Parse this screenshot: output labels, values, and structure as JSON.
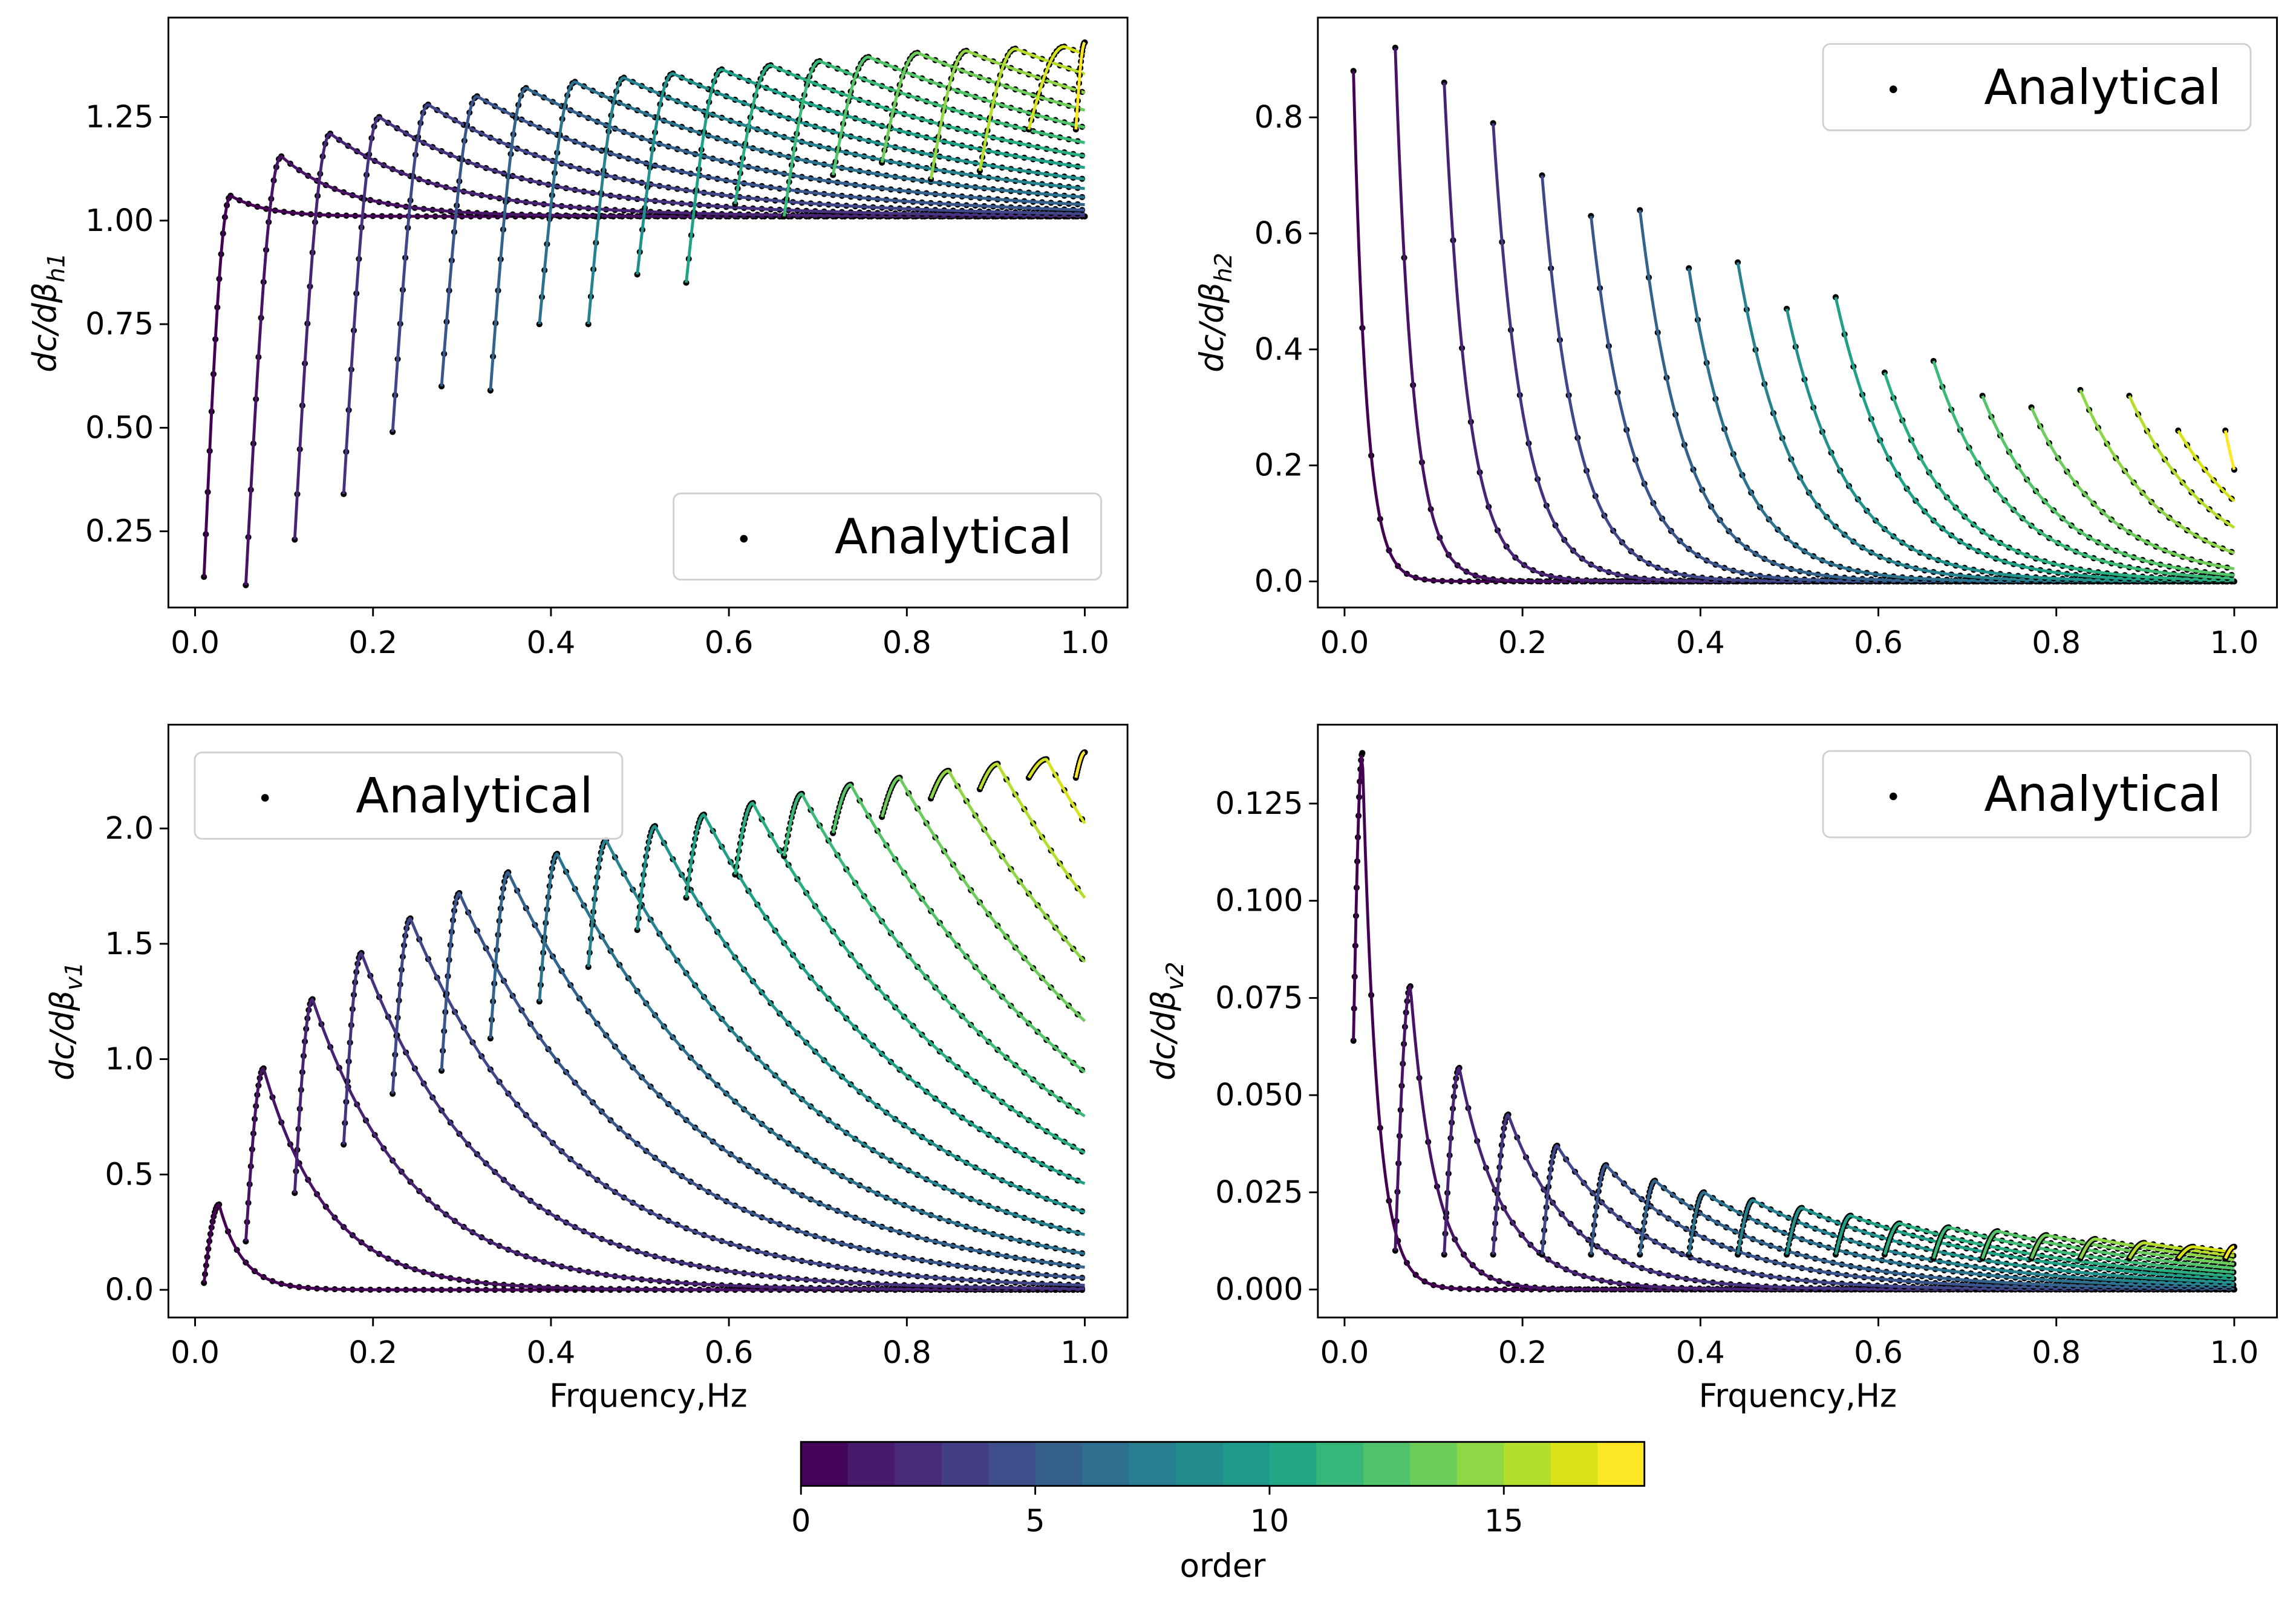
{
  "chart_data": {
    "type": "line",
    "x_values_note": "Frequency in Hz",
    "xlabel": "Frquency,Hz",
    "xlim": [
      -0.03,
      1.048
    ],
    "xticks": [
      0,
      0.2,
      0.4,
      0.6,
      0.8,
      1.0
    ],
    "xtick_labels": [
      "0.0",
      "0.2",
      "0.4",
      "0.6",
      "0.8",
      "1.0"
    ],
    "legend_label": "Analytical",
    "series_colors": [
      "#440154",
      "#471365",
      "#482374",
      "#46327e",
      "#404688",
      "#3a548c",
      "#33638d",
      "#2c728e",
      "#26828e",
      "#21918c",
      "#1fa187",
      "#28ae80",
      "#3aba76",
      "#52c569",
      "#6ccd5a",
      "#8ed645",
      "#b5de2b",
      "#d8e219",
      "#fde725"
    ],
    "orders": [
      0,
      1,
      2,
      3,
      4,
      5,
      6,
      7,
      8,
      9,
      10,
      11,
      12,
      13,
      14,
      15,
      16,
      17,
      18
    ],
    "start_freq": [
      0.01,
      0.057,
      0.112,
      0.167,
      0.222,
      0.277,
      0.332,
      0.387,
      0.442,
      0.497,
      0.552,
      0.607,
      0.662,
      0.717,
      0.772,
      0.827,
      0.882,
      0.937,
      0.99
    ],
    "panels": [
      {
        "id": "h1",
        "ylabel_main": "dc/dβ",
        "ylabel_sub": "h1",
        "ylim": [
          0.066,
          1.49
        ],
        "yticks": [
          0.25,
          0.5,
          0.75,
          1.0,
          1.25
        ],
        "ytick_labels": [
          "0.25",
          "0.50",
          "0.75",
          "1.00",
          "1.25"
        ],
        "legend_position": "lower-right",
        "show_xlabel": false,
        "asymptote": 1.01,
        "start_value": [
          0.14,
          0.12,
          0.23,
          0.34,
          0.49,
          0.6,
          0.59,
          0.75,
          0.75,
          0.87,
          0.85,
          1.04,
          1.01,
          1.11,
          1.14,
          1.1,
          1.12,
          1.22,
          1.22
        ],
        "peak_freq": [
          0.04,
          0.097,
          0.152,
          0.207,
          0.262,
          0.317,
          0.372,
          0.427,
          0.482,
          0.537,
          0.592,
          0.647,
          0.702,
          0.757,
          0.812,
          0.867,
          0.922,
          0.977,
          1.0
        ],
        "peak_value": [
          1.06,
          1.155,
          1.21,
          1.25,
          1.28,
          1.3,
          1.32,
          1.335,
          1.345,
          1.355,
          1.365,
          1.375,
          1.385,
          1.395,
          1.405,
          1.41,
          1.415,
          1.42,
          1.43
        ],
        "decay_rate": [
          25,
          13,
          8,
          6,
          5,
          4.3,
          3.8,
          3.4,
          3.1,
          2.9,
          2.7,
          2.6,
          2.5,
          2.4,
          2.3,
          2.2,
          2.1,
          2.0,
          2.0
        ]
      },
      {
        "id": "h2",
        "ylabel_main": "dc/dβ",
        "ylabel_sub": "h2",
        "ylim": [
          -0.045,
          0.972
        ],
        "yticks": [
          0,
          0.2,
          0.4,
          0.6,
          0.8
        ],
        "ytick_labels": [
          "0.0",
          "0.2",
          "0.4",
          "0.6",
          "0.8"
        ],
        "legend_position": "upper-right",
        "show_xlabel": false,
        "asymptote": 0,
        "start_value": [
          0.88,
          0.92,
          0.86,
          0.79,
          0.7,
          0.63,
          0.64,
          0.54,
          0.55,
          0.47,
          0.49,
          0.36,
          0.38,
          0.32,
          0.3,
          0.33,
          0.32,
          0.26,
          0.26
        ],
        "peak_freq": [
          0.01,
          0.057,
          0.112,
          0.167,
          0.222,
          0.277,
          0.332,
          0.387,
          0.442,
          0.497,
          0.552,
          0.607,
          0.662,
          0.717,
          0.772,
          0.827,
          0.882,
          0.937,
          0.99
        ],
        "peak_value": [
          0.88,
          0.92,
          0.86,
          0.79,
          0.7,
          0.63,
          0.64,
          0.54,
          0.55,
          0.47,
          0.49,
          0.36,
          0.38,
          0.32,
          0.3,
          0.33,
          0.32,
          0.26,
          0.26
        ],
        "decay_rate": [
          70,
          50,
          38,
          30,
          26,
          22,
          20,
          18,
          16,
          15,
          14,
          13,
          12.5,
          12,
          11.5,
          11,
          10.5,
          10,
          30
        ]
      },
      {
        "id": "v1",
        "ylabel_main": "dc/dβ",
        "ylabel_sub": "v1",
        "ylim": [
          -0.12,
          2.45
        ],
        "yticks": [
          0,
          0.5,
          1.0,
          1.5,
          2.0
        ],
        "ytick_labels": [
          "0.0",
          "0.5",
          "1.0",
          "1.5",
          "2.0"
        ],
        "legend_position": "upper-left",
        "show_xlabel": true,
        "asymptote": 0,
        "start_value": [
          0.03,
          0.21,
          0.42,
          0.63,
          0.85,
          0.95,
          1.09,
          1.25,
          1.4,
          1.56,
          1.7,
          1.8,
          1.88,
          1.98,
          2.05,
          2.13,
          2.17,
          2.22,
          2.22
        ],
        "peak_freq": [
          0.027,
          0.077,
          0.132,
          0.187,
          0.242,
          0.297,
          0.352,
          0.407,
          0.462,
          0.517,
          0.572,
          0.627,
          0.682,
          0.737,
          0.792,
          0.847,
          0.902,
          0.957,
          1.0
        ],
        "peak_value": [
          0.37,
          0.96,
          1.26,
          1.46,
          1.61,
          1.72,
          1.81,
          1.89,
          1.95,
          2.01,
          2.06,
          2.11,
          2.15,
          2.19,
          2.22,
          2.25,
          2.28,
          2.3,
          2.33
        ],
        "decay_rate": [
          38,
          14,
          9,
          7,
          5.8,
          5,
          4.5,
          4.2,
          3.9,
          3.7,
          3.5,
          3.4,
          3.3,
          3.2,
          3.1,
          3.0,
          3.0,
          3.0,
          3.0
        ]
      },
      {
        "id": "v2",
        "ylabel_main": "dc/dβ",
        "ylabel_sub": "v2",
        "ylim": [
          -0.0072,
          0.1453
        ],
        "yticks": [
          0,
          0.025,
          0.05,
          0.075,
          0.1,
          0.125
        ],
        "ytick_labels": [
          "0.000",
          "0.025",
          "0.050",
          "0.075",
          "0.100",
          "0.125"
        ],
        "legend_position": "upper-right",
        "show_xlabel": true,
        "asymptote": 0,
        "start_value": [
          0.064,
          0.01,
          0.009,
          0.009,
          0.009,
          0.009,
          0.009,
          0.009,
          0.009,
          0.009,
          0.009,
          0.009,
          0.008,
          0.008,
          0.008,
          0.008,
          0.008,
          0.008,
          0.008
        ],
        "peak_freq": [
          0.02,
          0.074,
          0.129,
          0.184,
          0.239,
          0.294,
          0.349,
          0.404,
          0.459,
          0.514,
          0.569,
          0.624,
          0.679,
          0.734,
          0.789,
          0.844,
          0.899,
          0.954,
          1.0
        ],
        "peak_value": [
          0.138,
          0.078,
          0.057,
          0.045,
          0.037,
          0.032,
          0.028,
          0.025,
          0.023,
          0.021,
          0.019,
          0.017,
          0.016,
          0.015,
          0.014,
          0.013,
          0.012,
          0.011,
          0.011
        ],
        "decay_rate": [
          60,
          36,
          20,
          14,
          10,
          8,
          7,
          6,
          5.5,
          5,
          4.5,
          4.2,
          4,
          3.8,
          3.6,
          3.4,
          3.2,
          3,
          3
        ]
      }
    ],
    "colorbar": {
      "label": "order",
      "range": [
        0,
        18
      ],
      "ticks": [
        0,
        5,
        10,
        15
      ],
      "tick_labels": [
        "0",
        "5",
        "10",
        "15"
      ],
      "colors": [
        "#450559",
        "#481a6c",
        "#472a7a",
        "#433d84",
        "#3d4e8a",
        "#355f8d",
        "#2e6e8e",
        "#287d8e",
        "#228c8d",
        "#1f9a8a",
        "#22a884",
        "#35b779",
        "#4ec36b",
        "#6ccd5a",
        "#8fd744",
        "#b4de2c",
        "#dae319",
        "#fde725"
      ]
    }
  }
}
